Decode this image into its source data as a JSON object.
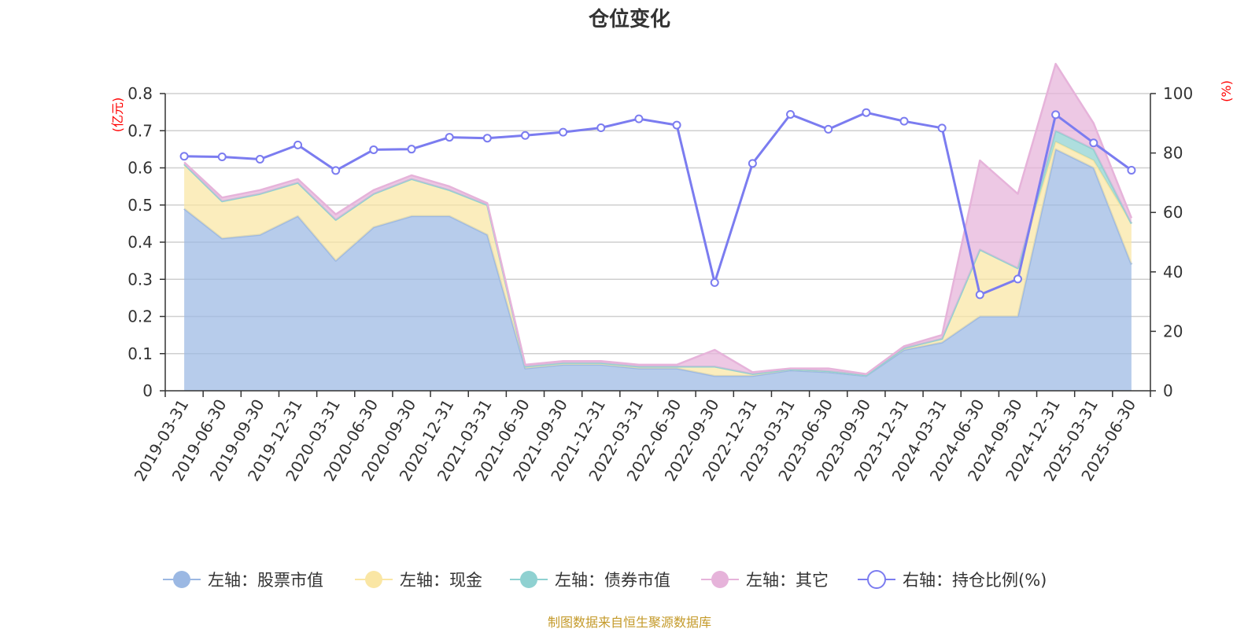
{
  "colors": {
    "stock": "#9bb8e3",
    "cash": "#fae6a4",
    "bond": "#8fd1d1",
    "other": "#e6b3da",
    "ratio": "#7b7cf0",
    "grid": "#cfcfcf",
    "axis": "#333333",
    "unit": "#ff0000",
    "source": "#c49a2a"
  },
  "chart_data": {
    "type": "area",
    "title": "仓位变化",
    "left_axis": {
      "unit_label": "(亿元)",
      "ylim": [
        0,
        0.8
      ],
      "ticks": [
        "0",
        "0.1",
        "0.2",
        "0.3",
        "0.4",
        "0.5",
        "0.6",
        "0.7",
        "0.8"
      ]
    },
    "right_axis": {
      "unit_label": "(%)",
      "ylim": [
        0,
        100
      ],
      "ticks": [
        "0",
        "20",
        "40",
        "60",
        "80",
        "100"
      ]
    },
    "grid": true,
    "legend_position": "bottom",
    "categories": [
      "2019-03-31",
      "2019-06-30",
      "2019-09-30",
      "2019-12-31",
      "2020-03-31",
      "2020-06-30",
      "2020-09-30",
      "2020-12-31",
      "2021-03-31",
      "2021-06-30",
      "2021-09-30",
      "2021-12-31",
      "2022-03-31",
      "2022-06-30",
      "2022-09-30",
      "2022-12-31",
      "2023-03-31",
      "2023-06-30",
      "2023-09-30",
      "2023-12-31",
      "2024-03-31",
      "2024-06-30",
      "2024-09-30",
      "2024-12-31",
      "2025-03-31",
      "2025-06-30"
    ],
    "series": [
      {
        "name": "左轴：股票市值",
        "axis": "left",
        "kind": "stacked-area",
        "values": [
          0.49,
          0.41,
          0.42,
          0.47,
          0.35,
          0.44,
          0.47,
          0.47,
          0.42,
          0.06,
          0.07,
          0.07,
          0.06,
          0.06,
          0.04,
          0.04,
          0.055,
          0.05,
          0.04,
          0.11,
          0.13,
          0.2,
          0.2,
          0.65,
          0.6,
          0.34
        ]
      },
      {
        "name": "左轴：现金",
        "axis": "left",
        "kind": "stacked-area",
        "values": [
          0.12,
          0.1,
          0.11,
          0.09,
          0.11,
          0.09,
          0.1,
          0.07,
          0.08,
          0.005,
          0.005,
          0.005,
          0.005,
          0.005,
          0.025,
          0.005,
          0.003,
          0.003,
          0.002,
          0.005,
          0.01,
          0.18,
          0.13,
          0.02,
          0.02,
          0.11
        ]
      },
      {
        "name": "左轴：债券市值",
        "axis": "left",
        "kind": "stacked-area",
        "values": [
          0,
          0,
          0,
          0,
          0,
          0,
          0,
          0,
          0,
          0,
          0,
          0,
          0,
          0,
          0,
          0,
          0,
          0,
          0,
          0,
          0,
          0,
          0,
          0.03,
          0.03,
          0
        ]
      },
      {
        "name": "左轴：其它",
        "axis": "left",
        "kind": "stacked-area",
        "values": [
          0.005,
          0.01,
          0.01,
          0.01,
          0.015,
          0.01,
          0.01,
          0.01,
          0.005,
          0.005,
          0.005,
          0.005,
          0.005,
          0.005,
          0.045,
          0.005,
          0.002,
          0.007,
          0.003,
          0.005,
          0.01,
          0.24,
          0.2,
          0.18,
          0.07,
          0.015
        ]
      },
      {
        "name": "右轴：持仓比例(%)",
        "axis": "right",
        "kind": "line",
        "values": [
          78.9,
          78.7,
          77.9,
          82.7,
          74.1,
          81.1,
          81.3,
          85.3,
          85.0,
          85.9,
          87.0,
          88.5,
          91.5,
          89.4,
          36.4,
          76.5,
          93.0,
          88.0,
          93.6,
          90.7,
          88.4,
          32.3,
          37.6,
          92.9,
          83.4,
          74.2
        ]
      }
    ]
  },
  "legend": [
    {
      "label": "左轴：股票市值",
      "marker": "circle-filled",
      "color": "stock"
    },
    {
      "label": "左轴：现金",
      "marker": "circle-filled",
      "color": "cash"
    },
    {
      "label": "左轴：债券市值",
      "marker": "circle-filled",
      "color": "bond"
    },
    {
      "label": "左轴：其它",
      "marker": "circle-filled",
      "color": "other"
    },
    {
      "label": "右轴：持仓比例(%)",
      "marker": "circle-hollow",
      "color": "ratio"
    }
  ],
  "source_note": "制图数据来自恒生聚源数据库"
}
